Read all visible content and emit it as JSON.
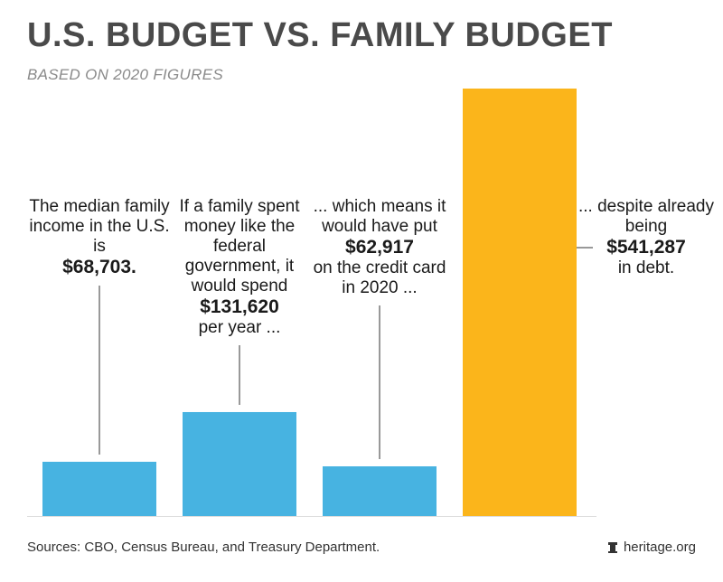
{
  "title": "U.S. BUDGET VS. FAMILY BUDGET",
  "subtitle": "BASED ON 2020 FIGURES",
  "annotations": [
    {
      "text_before": "The median family income in the U.S. is",
      "amount": "$68,703.",
      "text_after": ""
    },
    {
      "text_before": "If a family spent money like the federal government, it would spend",
      "amount": "$131,620",
      "text_after": "per year ..."
    },
    {
      "text_before": "... which means it would have put",
      "amount": "$62,917",
      "text_after": "on the credit card in 2020 ..."
    },
    {
      "text_before": "... despite already being",
      "amount": "$541,287",
      "text_after": "in debt."
    }
  ],
  "footer": {
    "source": "Sources: CBO, Census Bureau, and Treasury Department.",
    "brand": "heritage.org",
    "brand_icon": "heritage-logo-icon"
  },
  "colors": {
    "blue": "#47B3E1",
    "gold": "#FBB51B",
    "baseline": "#dddddd"
  },
  "chart_data": {
    "type": "bar",
    "categories": [
      "Median family income",
      "Family spending like federal government",
      "Put on credit card in 2020",
      "Debt"
    ],
    "values": [
      68703,
      131620,
      62917,
      541287
    ],
    "ylim": [
      0,
      541287
    ],
    "grid": false,
    "legend": "none"
  }
}
